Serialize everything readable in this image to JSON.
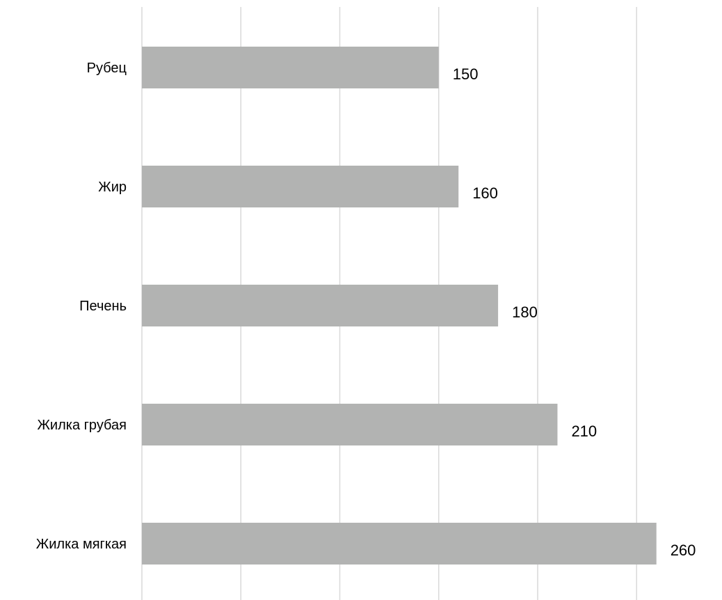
{
  "chart_data": {
    "type": "bar",
    "orientation": "horizontal",
    "categories": [
      "Рубец",
      "Жир",
      "Печень",
      "Жилка грубая",
      "Жилка мягкая"
    ],
    "values": [
      150,
      160,
      180,
      210,
      260
    ],
    "xlim": [
      0,
      260
    ],
    "grid": true,
    "colors": {
      "bar": "#b2b3b2",
      "grid": "#d9d9d9"
    }
  }
}
